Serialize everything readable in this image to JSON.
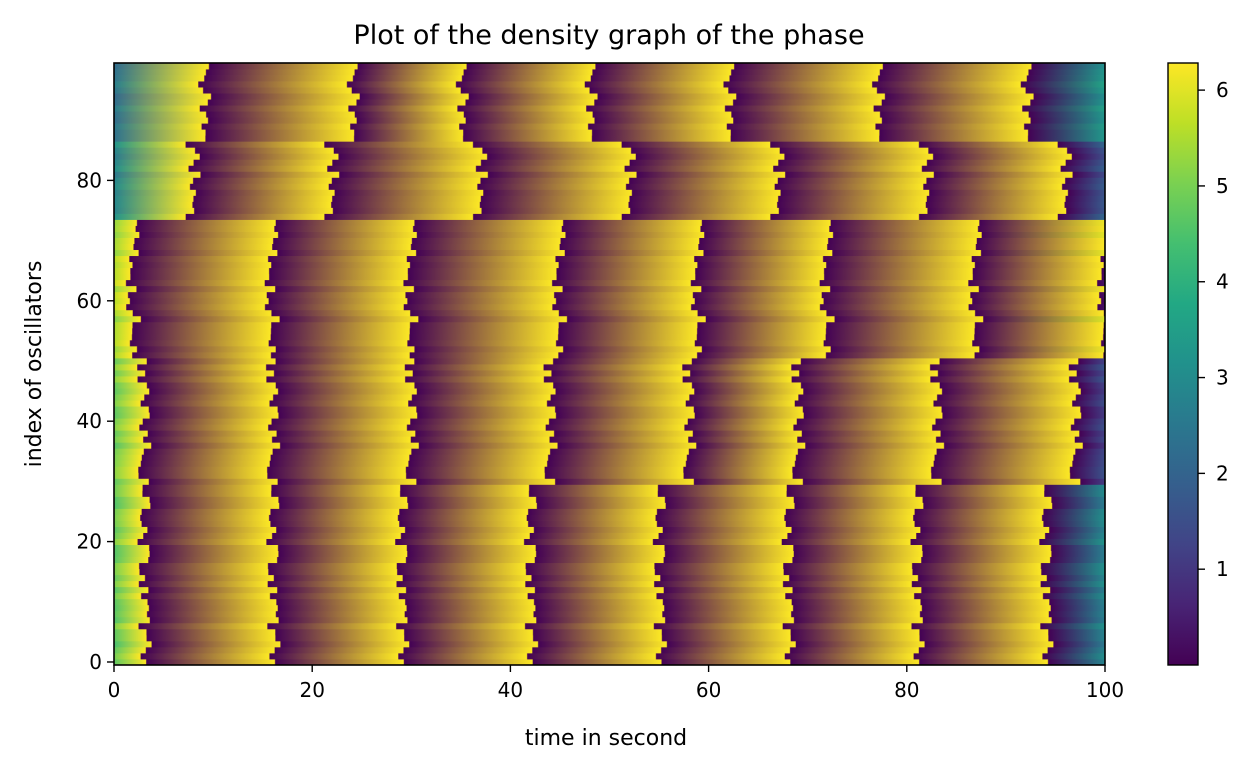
{
  "chart_data": {
    "type": "heatmap",
    "title": "Plot of the density graph of the phase",
    "xlabel": "time in second",
    "ylabel": "index of oscillators",
    "xlim": [
      0,
      100
    ],
    "ylim": [
      0,
      99
    ],
    "xticks": [
      "0",
      "20",
      "40",
      "60",
      "80",
      "100"
    ],
    "yticks": [
      "0",
      "20",
      "40",
      "60",
      "80"
    ],
    "colorbar": {
      "colormap": "viridis",
      "range": [
        0,
        6.283
      ],
      "ticks": [
        "1",
        "2",
        "3",
        "4",
        "5",
        "6"
      ]
    },
    "phase_wrap_period": 6.283,
    "groups": [
      {
        "rows": [
          0,
          29
        ],
        "period_s": 12.9,
        "wrap_times_s": [
          3,
          16,
          29,
          42,
          55,
          68,
          81,
          94
        ]
      },
      {
        "rows": [
          30,
          50
        ],
        "period_s": 13.9,
        "wrap_times_s": [
          3,
          16,
          30,
          44,
          58,
          69,
          83,
          97
        ]
      },
      {
        "rows": [
          51,
          73
        ],
        "period_s": 14.5,
        "wrap_times_s": [
          2,
          16,
          30,
          45,
          59,
          72,
          87,
          100
        ]
      },
      {
        "rows": [
          74,
          86
        ],
        "period_s": 14.7,
        "wrap_times_s": [
          8,
          22,
          37,
          52,
          67,
          82,
          96
        ]
      },
      {
        "rows": [
          87,
          99
        ],
        "period_s": 14.8,
        "wrap_times_s": [
          9,
          24,
          35,
          48,
          62,
          77,
          92
        ]
      }
    ]
  }
}
